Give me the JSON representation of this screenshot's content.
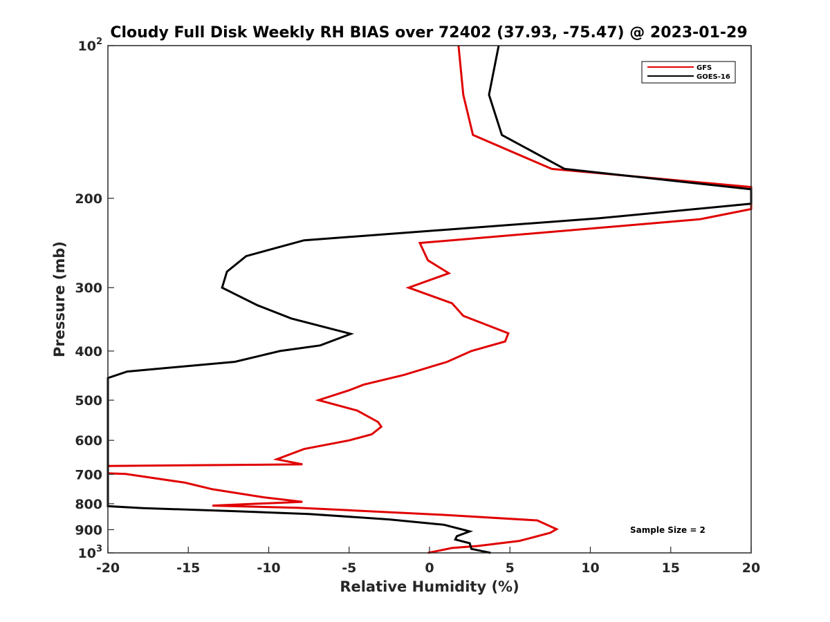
{
  "chart_data": {
    "type": "line",
    "title": "Cloudy Full Disk Weekly RH BIAS over 72402 (37.93, -75.47) @ 2023-01-29",
    "xlabel": "Relative Humidity (%)",
    "ylabel": "Pressure (mb)",
    "xlim": [
      -20,
      20
    ],
    "ylim": [
      100,
      1000
    ],
    "y_scale": "log",
    "y_reversed": true,
    "xticks": [
      -20,
      -15,
      -10,
      -5,
      0,
      5,
      10,
      15,
      20
    ],
    "xtick_labels": [
      "-20",
      "-15",
      "-10",
      "-5",
      "0",
      "5",
      "10",
      "15",
      "20"
    ],
    "yticks": [
      {
        "value": 100,
        "base": "10",
        "exp": "2"
      },
      {
        "value": 200,
        "base": "200",
        "exp": ""
      },
      {
        "value": 300,
        "base": "300",
        "exp": ""
      },
      {
        "value": 400,
        "base": "400",
        "exp": ""
      },
      {
        "value": 500,
        "base": "500",
        "exp": ""
      },
      {
        "value": 600,
        "base": "600",
        "exp": ""
      },
      {
        "value": 700,
        "base": "700",
        "exp": ""
      },
      {
        "value": 800,
        "base": "800",
        "exp": ""
      },
      {
        "value": 900,
        "base": "900",
        "exp": ""
      },
      {
        "value": 1000,
        "base": "10",
        "exp": "3"
      }
    ],
    "grid": false,
    "legend_position": "top-right",
    "annotation": "Sample Size = 2",
    "series": [
      {
        "name": "GFS",
        "color": "#e00000",
        "points": [
          [
            1.8,
            100
          ],
          [
            2.1,
            125
          ],
          [
            2.7,
            150
          ],
          [
            7.6,
            175
          ],
          [
            20,
            190
          ],
          [
            20,
            210
          ],
          [
            16.8,
            220
          ],
          [
            -0.6,
            245
          ],
          [
            -0.1,
            265
          ],
          [
            1.2,
            281
          ],
          [
            -1.3,
            300
          ],
          [
            1.4,
            322
          ],
          [
            2.1,
            341
          ],
          [
            4.9,
            369
          ],
          [
            4.7,
            383
          ],
          [
            2.6,
            400
          ],
          [
            1.1,
            420
          ],
          [
            -1.6,
            446
          ],
          [
            -4.1,
            466
          ],
          [
            -5.0,
            478
          ],
          [
            -6.9,
            500
          ],
          [
            -4.5,
            524
          ],
          [
            -3.2,
            552
          ],
          [
            -3.0,
            564
          ],
          [
            -3.6,
            584
          ],
          [
            -5.0,
            600
          ],
          [
            -7.8,
            624
          ],
          [
            -9.5,
            654
          ],
          [
            -7.9,
            669
          ],
          [
            -20,
            674
          ],
          [
            -20,
            697
          ],
          [
            -18.9,
            699
          ],
          [
            -15.2,
            727
          ],
          [
            -13.5,
            749
          ],
          [
            -10.3,
            777
          ],
          [
            -7.9,
            793
          ],
          [
            -13.5,
            807
          ],
          [
            -8.2,
            815
          ],
          [
            -5.0,
            824
          ],
          [
            0.7,
            841
          ],
          [
            6.7,
            863
          ],
          [
            7.9,
            898
          ],
          [
            7.5,
            913
          ],
          [
            5.6,
            947
          ],
          [
            3.0,
            969
          ],
          [
            1.4,
            978
          ],
          [
            -0.1,
            1000
          ]
        ]
      },
      {
        "name": "GOES-16",
        "color": "#000000",
        "points": [
          [
            4.3,
            100
          ],
          [
            3.7,
            125
          ],
          [
            4.5,
            150
          ],
          [
            8.4,
            175
          ],
          [
            20,
            192
          ],
          [
            20,
            205
          ],
          [
            10.5,
            219
          ],
          [
            -7.8,
            242
          ],
          [
            -11.4,
            260
          ],
          [
            -12.6,
            279
          ],
          [
            -12.9,
            300
          ],
          [
            -10.7,
            325
          ],
          [
            -8.6,
            345
          ],
          [
            -4.9,
            370
          ],
          [
            -6.8,
            390
          ],
          [
            -9.3,
            400
          ],
          [
            -12.1,
            420
          ],
          [
            -18.8,
            439
          ],
          [
            -20,
            452
          ],
          [
            -20,
            809
          ],
          [
            -17.8,
            816
          ],
          [
            -12.0,
            828
          ],
          [
            -7.5,
            838
          ],
          [
            -2.5,
            859
          ],
          [
            0.9,
            880
          ],
          [
            2.5,
            907
          ],
          [
            1.7,
            927
          ],
          [
            1.6,
            941
          ],
          [
            2.5,
            957
          ],
          [
            2.6,
            982
          ],
          [
            3.8,
            1000
          ]
        ]
      }
    ]
  }
}
